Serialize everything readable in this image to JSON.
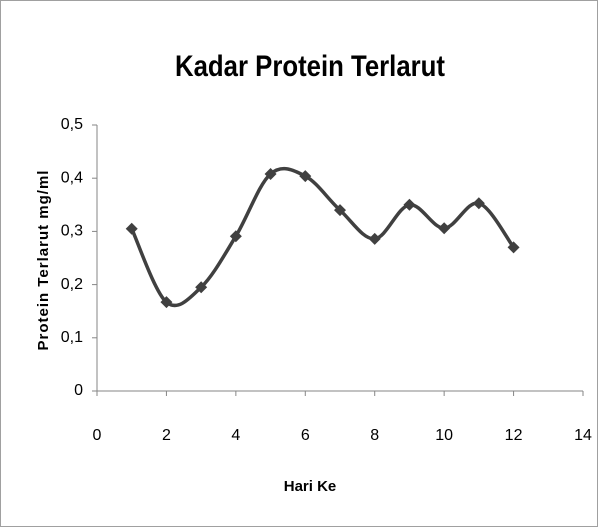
{
  "chart_data": {
    "type": "line",
    "title": "Kadar Protein Terlarut",
    "x_label": "Hari Ke",
    "y_label": "Protein Terlarut mg/ml",
    "x": [
      1,
      2,
      3,
      4,
      5,
      6,
      7,
      8,
      9,
      10,
      11,
      12
    ],
    "series": [
      {
        "color": "#404040",
        "values": [
          0.305,
          0.167,
          0.195,
          0.291,
          0.408,
          0.404,
          0.34,
          0.286,
          0.35,
          0.306,
          0.353,
          0.27
        ]
      }
    ],
    "smooth": true,
    "xlim": [
      0,
      14
    ],
    "xticks": [
      0,
      2,
      4,
      6,
      8,
      10,
      12,
      14
    ],
    "ylim": [
      0,
      0.5
    ],
    "yticks": [
      0,
      {
        "value": 0.1,
        "label": "0,1"
      },
      {
        "value": 0.2,
        "label": "0,2"
      },
      {
        "value": 0.3,
        "label": "0,3"
      },
      {
        "value": 0.4,
        "label": "0,4"
      },
      {
        "value": 0.5,
        "label": "0,5"
      }
    ],
    "grid": false
  }
}
